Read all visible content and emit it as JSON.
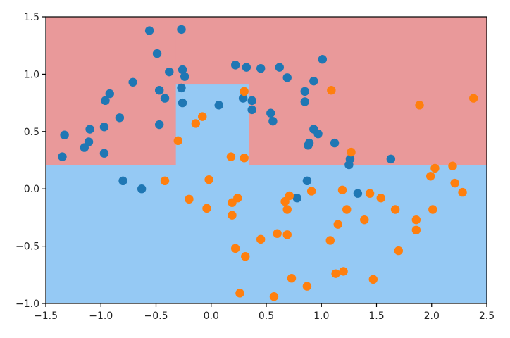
{
  "chart_data": {
    "type": "scatter",
    "title": "",
    "xlabel": "",
    "ylabel": "",
    "xlim": [
      -1.5,
      2.5
    ],
    "ylim": [
      -1.0,
      1.5
    ],
    "grid": false,
    "x_ticks": [
      -1.5,
      -1.0,
      -0.5,
      0.0,
      0.5,
      1.0,
      1.5,
      2.0,
      2.5
    ],
    "x_tick_labels": [
      "−1.5",
      "−1.0",
      "−0.5",
      "0.0",
      "0.5",
      "1.0",
      "1.5",
      "2.0",
      "2.5"
    ],
    "y_ticks": [
      -1.0,
      -0.5,
      0.0,
      0.5,
      1.0,
      1.5
    ],
    "y_tick_labels": [
      "−1.0",
      "−0.5",
      "0.0",
      "0.5",
      "1.0",
      "1.5"
    ],
    "decision_regions": [
      {
        "class": 0,
        "color": "#e9999a",
        "rects": [
          {
            "x0": -1.5,
            "x1": -0.32,
            "y0": 0.21,
            "y1": 1.5
          },
          {
            "x0": -0.32,
            "x1": 0.34,
            "y0": 0.91,
            "y1": 1.5
          },
          {
            "x0": 0.34,
            "x1": 2.5,
            "y0": 0.21,
            "y1": 1.5
          }
        ]
      },
      {
        "class": 1,
        "color": "#95c9f4",
        "rects": [
          {
            "x0": -1.5,
            "x1": 2.5,
            "y0": -1.0,
            "y1": 0.21
          },
          {
            "x0": -0.32,
            "x1": 0.34,
            "y0": 0.21,
            "y1": 0.91
          }
        ]
      }
    ],
    "series": [
      {
        "color": "#1f77b4",
        "points": [
          [
            -0.56,
            1.38
          ],
          [
            -0.27,
            1.39
          ],
          [
            -0.49,
            1.18
          ],
          [
            -0.71,
            0.93
          ],
          [
            -0.38,
            1.02
          ],
          [
            -0.26,
            1.04
          ],
          [
            -0.24,
            0.98
          ],
          [
            -0.47,
            0.86
          ],
          [
            -0.42,
            0.79
          ],
          [
            -0.26,
            0.75
          ],
          [
            -0.27,
            0.88
          ],
          [
            -0.47,
            0.56
          ],
          [
            -0.92,
            0.83
          ],
          [
            -0.96,
            0.77
          ],
          [
            -0.83,
            0.62
          ],
          [
            -0.97,
            0.54
          ],
          [
            -1.1,
            0.52
          ],
          [
            -1.11,
            0.41
          ],
          [
            -1.15,
            0.36
          ],
          [
            -1.33,
            0.47
          ],
          [
            -1.35,
            0.28
          ],
          [
            -0.97,
            0.31
          ],
          [
            -0.8,
            0.07
          ],
          [
            -0.63,
            0.0
          ],
          [
            0.07,
            0.73
          ],
          [
            0.22,
            1.08
          ],
          [
            0.32,
            1.06
          ],
          [
            0.45,
            1.05
          ],
          [
            0.62,
            1.06
          ],
          [
            0.69,
            0.97
          ],
          [
            0.29,
            0.79
          ],
          [
            0.37,
            0.77
          ],
          [
            0.37,
            0.69
          ],
          [
            0.54,
            0.66
          ],
          [
            0.56,
            0.59
          ],
          [
            1.01,
            1.13
          ],
          [
            0.93,
            0.94
          ],
          [
            0.85,
            0.85
          ],
          [
            0.85,
            0.76
          ],
          [
            0.93,
            0.52
          ],
          [
            0.97,
            0.48
          ],
          [
            0.88,
            0.38
          ],
          [
            0.89,
            0.4
          ],
          [
            1.12,
            0.4
          ],
          [
            1.26,
            0.26
          ],
          [
            1.25,
            0.21
          ],
          [
            1.33,
            -0.04
          ],
          [
            0.78,
            -0.08
          ],
          [
            0.87,
            0.07
          ],
          [
            1.63,
            0.26
          ]
        ]
      },
      {
        "color": "#ff7f0e",
        "points": [
          [
            -0.42,
            0.07
          ],
          [
            -0.3,
            0.42
          ],
          [
            -0.14,
            0.57
          ],
          [
            -0.08,
            0.63
          ],
          [
            0.3,
            0.85
          ],
          [
            -0.2,
            -0.09
          ],
          [
            -0.02,
            0.08
          ],
          [
            -0.04,
            -0.17
          ],
          [
            0.18,
            0.28
          ],
          [
            0.3,
            0.27
          ],
          [
            0.19,
            -0.12
          ],
          [
            0.24,
            -0.08
          ],
          [
            0.19,
            -0.23
          ],
          [
            0.22,
            -0.52
          ],
          [
            0.31,
            -0.59
          ],
          [
            0.45,
            -0.44
          ],
          [
            0.26,
            -0.91
          ],
          [
            0.57,
            -0.94
          ],
          [
            0.6,
            -0.39
          ],
          [
            0.69,
            -0.4
          ],
          [
            0.71,
            -0.06
          ],
          [
            0.67,
            -0.11
          ],
          [
            0.69,
            -0.18
          ],
          [
            0.73,
            -0.78
          ],
          [
            0.87,
            -0.85
          ],
          [
            0.91,
            -0.02
          ],
          [
            1.09,
            0.86
          ],
          [
            1.27,
            0.32
          ],
          [
            1.19,
            -0.01
          ],
          [
            1.23,
            -0.18
          ],
          [
            1.15,
            -0.31
          ],
          [
            1.08,
            -0.45
          ],
          [
            1.13,
            -0.74
          ],
          [
            1.2,
            -0.72
          ],
          [
            1.39,
            -0.27
          ],
          [
            1.44,
            -0.04
          ],
          [
            1.47,
            -0.79
          ],
          [
            1.54,
            -0.08
          ],
          [
            1.7,
            -0.54
          ],
          [
            1.67,
            -0.18
          ],
          [
            1.86,
            -0.27
          ],
          [
            1.86,
            -0.36
          ],
          [
            1.89,
            0.73
          ],
          [
            1.99,
            0.11
          ],
          [
            2.03,
            0.18
          ],
          [
            2.01,
            -0.18
          ],
          [
            2.19,
            0.2
          ],
          [
            2.21,
            0.05
          ],
          [
            2.28,
            -0.03
          ],
          [
            2.38,
            0.79
          ]
        ]
      }
    ]
  }
}
